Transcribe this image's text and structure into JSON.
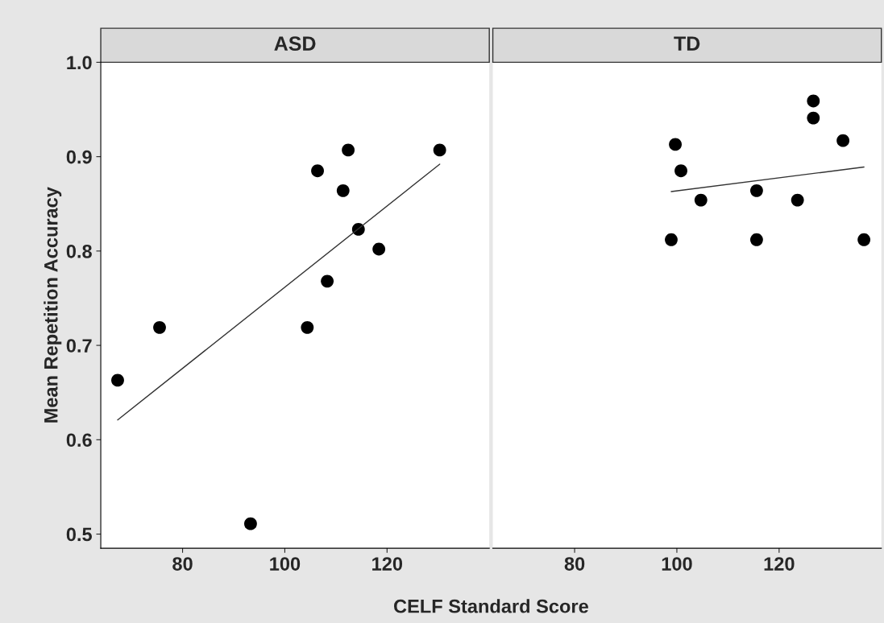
{
  "chart_data": [
    {
      "type": "scatter",
      "title": "ASD",
      "xlabel": "CELF Standard Score",
      "ylabel": "Mean Repetition Accuracy",
      "xlim": [
        64,
        140
      ],
      "xticks": [
        80,
        100,
        120
      ],
      "ylim": [
        0.485,
        1.0
      ],
      "yticks": [
        {
          "value": 0.5,
          "label": "0.5"
        },
        {
          "value": 0.6,
          "label": "0.6"
        },
        {
          "value": 0.7,
          "label": "0.7"
        },
        {
          "value": 0.8,
          "label": "0.8"
        },
        {
          "value": 0.9,
          "label": "0.9"
        },
        {
          "value": 1.0,
          "label": "1.0"
        }
      ],
      "grid": false,
      "marker": "circle",
      "series": [
        {
          "color": "#000000",
          "x": [
            67.3,
            75.5,
            93.3,
            104.4,
            106.4,
            108.3,
            111.4,
            112.4,
            114.4,
            118.4,
            130.3
          ],
          "values": [
            0.663,
            0.719,
            0.511,
            0.719,
            0.885,
            0.768,
            0.864,
            0.907,
            0.823,
            0.802,
            0.907
          ]
        },
        {
          "type": "line",
          "marker": "none",
          "color": "#333333",
          "x": [
            67.3,
            130.3
          ],
          "values": [
            0.621,
            0.892
          ]
        }
      ]
    },
    {
      "type": "scatter",
      "title": "TD",
      "xlim": [
        64,
        140
      ],
      "xticks": [
        80,
        100,
        120
      ],
      "ylim": [
        0.485,
        1.0
      ],
      "tick_labels": "x",
      "grid": false,
      "marker": "circle",
      "series": [
        {
          "color": "#000000",
          "x": [
            98.9,
            99.7,
            100.8,
            104.7,
            115.6,
            115.6,
            123.6,
            126.7,
            126.7,
            132.5,
            136.6
          ],
          "values": [
            0.812,
            0.913,
            0.885,
            0.854,
            0.864,
            0.812,
            0.854,
            0.959,
            0.941,
            0.917,
            0.812
          ]
        },
        {
          "type": "line",
          "marker": "none",
          "color": "#333333",
          "x": [
            98.9,
            136.6
          ],
          "values": [
            0.863,
            0.889
          ]
        }
      ]
    }
  ]
}
